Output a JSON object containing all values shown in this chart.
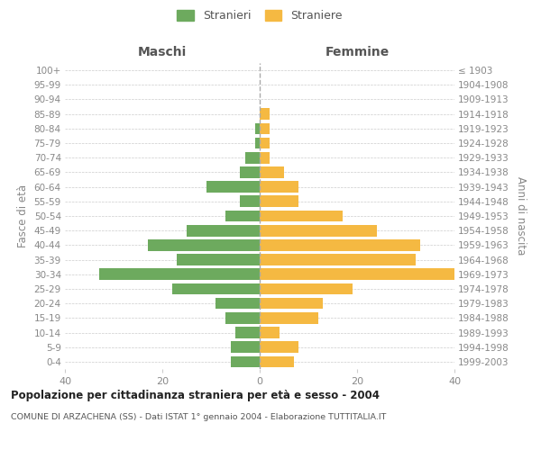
{
  "age_groups_bottom_to_top": [
    "0-4",
    "5-9",
    "10-14",
    "15-19",
    "20-24",
    "25-29",
    "30-34",
    "35-39",
    "40-44",
    "45-49",
    "50-54",
    "55-59",
    "60-64",
    "65-69",
    "70-74",
    "75-79",
    "80-84",
    "85-89",
    "90-94",
    "95-99",
    "100+"
  ],
  "birth_years_bottom_to_top": [
    "1999-2003",
    "1994-1998",
    "1989-1993",
    "1984-1988",
    "1979-1983",
    "1974-1978",
    "1969-1973",
    "1964-1968",
    "1959-1963",
    "1954-1958",
    "1949-1953",
    "1944-1948",
    "1939-1943",
    "1934-1938",
    "1929-1933",
    "1924-1928",
    "1919-1923",
    "1914-1918",
    "1909-1913",
    "1904-1908",
    "≤ 1903"
  ],
  "maschi_bottom_to_top": [
    6,
    6,
    5,
    7,
    9,
    18,
    33,
    17,
    23,
    15,
    7,
    4,
    11,
    4,
    3,
    1,
    1,
    0,
    0,
    0,
    0
  ],
  "femmine_bottom_to_top": [
    7,
    8,
    4,
    12,
    13,
    19,
    40,
    32,
    33,
    24,
    17,
    8,
    8,
    5,
    2,
    2,
    2,
    2,
    0,
    0,
    0
  ],
  "color_maschi": "#6daa5e",
  "color_femmine": "#f5b942",
  "title_main": "Popolazione per cittadinanza straniera per età e sesso - 2004",
  "title_sub": "COMUNE DI ARZACHENA (SS) - Dati ISTAT 1° gennaio 2004 - Elaborazione TUTTITALIA.IT",
  "ylabel_left": "Fasce di età",
  "ylabel_right": "Anni di nascita",
  "xlabel_left": "Maschi",
  "xlabel_right": "Femmine",
  "legend_maschi": "Stranieri",
  "legend_femmine": "Straniere",
  "xlim": 40,
  "background_color": "#ffffff",
  "grid_color": "#cccccc"
}
